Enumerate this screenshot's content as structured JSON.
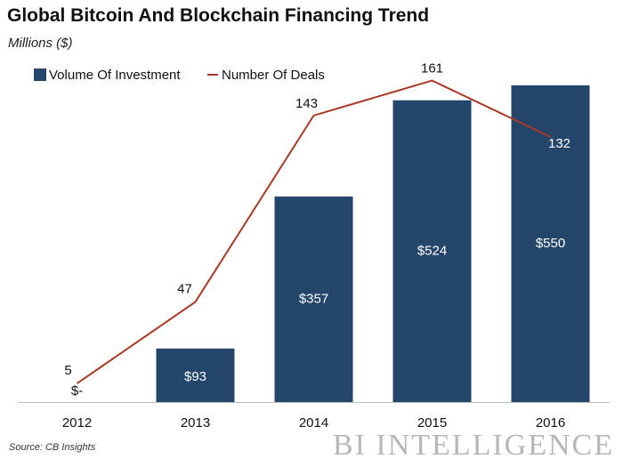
{
  "chart_data": {
    "type": "bar",
    "title": "Global Bitcoin And Blockchain Financing Trend",
    "subtitle": "Millions ($)",
    "categories": [
      "2012",
      "2013",
      "2014",
      "2015",
      "2016"
    ],
    "series": [
      {
        "name": "Volume Of Investment",
        "kind": "bar",
        "color": "#25466b",
        "values": [
          0,
          93,
          357,
          524,
          550
        ],
        "labels": [
          "$-",
          "$93",
          "$357",
          "$524",
          "$550"
        ]
      },
      {
        "name": "Number Of Deals",
        "kind": "line",
        "color": "#a83a25",
        "values": [
          5,
          47,
          143,
          161,
          132
        ],
        "labels": [
          "5",
          "47",
          "143",
          "161",
          "132"
        ]
      }
    ],
    "bar_ylim": [
      0,
      590
    ],
    "line_ylim": [
      0,
      175
    ],
    "legend_position": "top-left",
    "grid": false
  },
  "footer": {
    "source": "Source: CB Insights",
    "brand": "BI INTELLIGENCE"
  }
}
